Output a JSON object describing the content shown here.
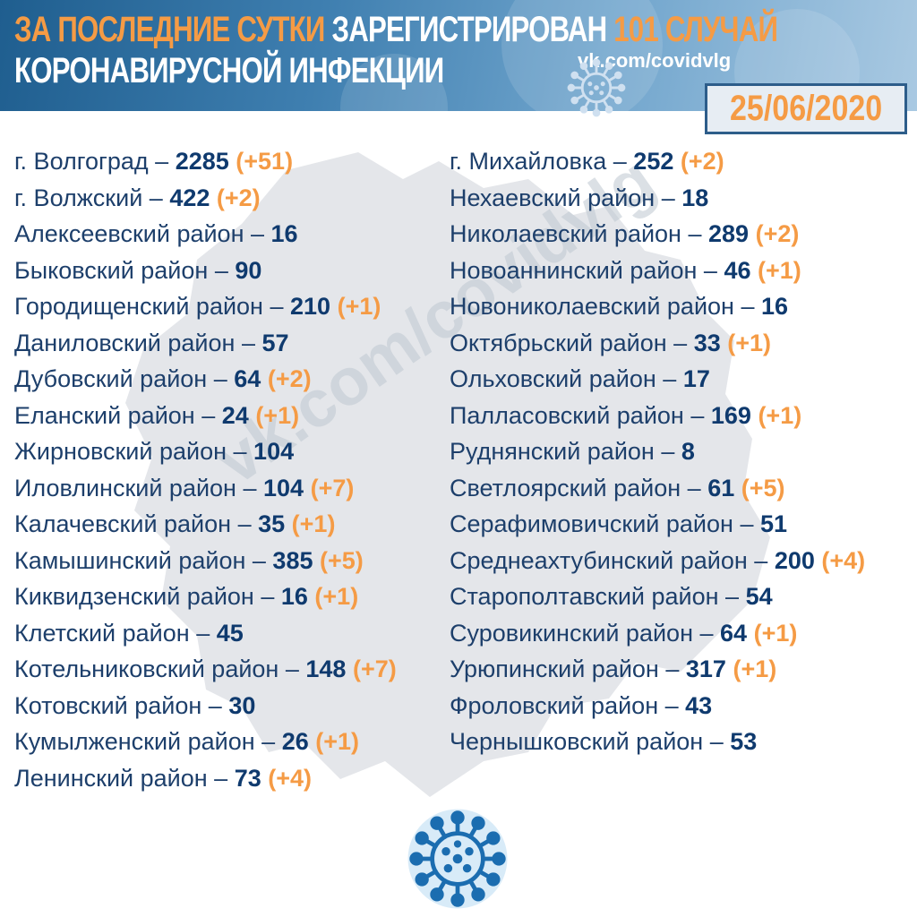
{
  "header": {
    "headline_part1": "ЗА ПОСЛЕДНИЕ СУТКИ",
    "headline_part2": "ЗАРЕГИСТРИРОВАН",
    "headline_part3": "101 СЛУЧАЙ",
    "headline_line2": "КОРОНАВИРУСНОЙ ИНФЕКЦИИ",
    "site": "vk.com/covidvlg",
    "date": "25/06/2020"
  },
  "watermark": "vk.com/covidvlg",
  "colors": {
    "orange": "#f59b45",
    "navy": "#0f3a6e",
    "header_blue": "#1f5e8f"
  },
  "icons": {
    "header": "coronavirus-icon",
    "bottom": "coronavirus-icon",
    "background": "region-map-shape"
  },
  "left_column": [
    {
      "name": "г. Волгоград",
      "count": "2285",
      "delta": "(+51)"
    },
    {
      "name": "г. Волжский",
      "count": "422",
      "delta": "(+2)"
    },
    {
      "name": "Алексеевский район",
      "count": "16",
      "delta": ""
    },
    {
      "name": "Быковский район",
      "count": "90",
      "delta": ""
    },
    {
      "name": "Городищенский район",
      "count": "210",
      "delta": "(+1)"
    },
    {
      "name": "Даниловский район",
      "count": "57",
      "delta": ""
    },
    {
      "name": "Дубовский район",
      "count": "64",
      "delta": "(+2)"
    },
    {
      "name": "Еланский район",
      "count": "24",
      "delta": "(+1)"
    },
    {
      "name": "Жирновский район",
      "count": "104",
      "delta": ""
    },
    {
      "name": "Иловлинский район",
      "count": "104",
      "delta": "(+7)"
    },
    {
      "name": "Калачевский район",
      "count": "35",
      "delta": "(+1)"
    },
    {
      "name": "Камышинский район",
      "count": "385",
      "delta": "(+5)"
    },
    {
      "name": "Киквидзенский район",
      "count": "16",
      "delta": "(+1)"
    },
    {
      "name": "Клетский район",
      "count": "45",
      "delta": ""
    },
    {
      "name": "Котельниковский район",
      "count": "148",
      "delta": "(+7)"
    },
    {
      "name": "Котовский район",
      "count": "30",
      "delta": ""
    },
    {
      "name": "Кумылженский район",
      "count": "26",
      "delta": "(+1)"
    },
    {
      "name": "Ленинский район",
      "count": "73",
      "delta": "(+4)"
    }
  ],
  "right_column": [
    {
      "name": "г. Михайловка",
      "count": "252",
      "delta": "(+2)"
    },
    {
      "name": "Нехаевский район",
      "count": "18",
      "delta": ""
    },
    {
      "name": "Николаевский район",
      "count": "289",
      "delta": "(+2)"
    },
    {
      "name": "Новоаннинский район",
      "count": "46",
      "delta": "(+1)"
    },
    {
      "name": "Новониколаевский район",
      "count": "16",
      "delta": ""
    },
    {
      "name": "Октябрьский район",
      "count": "33",
      "delta": "(+1)"
    },
    {
      "name": "Ольховский район",
      "count": "17",
      "delta": ""
    },
    {
      "name": "Палласовский район",
      "count": "169",
      "delta": "(+1)"
    },
    {
      "name": "Руднянский район",
      "count": "8",
      "delta": ""
    },
    {
      "name": "Светлоярский район",
      "count": "61",
      "delta": "(+5)"
    },
    {
      "name": "Серафимовичский район",
      "count": "51",
      "delta": ""
    },
    {
      "name": "Среднеахтубинский район",
      "count": "200",
      "delta": "(+4)"
    },
    {
      "name": "Старополтавский район",
      "count": "54",
      "delta": ""
    },
    {
      "name": "Суровикинский район",
      "count": "64",
      "delta": "(+1)"
    },
    {
      "name": "Урюпинский район",
      "count": "317",
      "delta": "(+1)"
    },
    {
      "name": "Фроловский район",
      "count": "43",
      "delta": ""
    },
    {
      "name": "Чернышковский район",
      "count": "53",
      "delta": ""
    }
  ]
}
